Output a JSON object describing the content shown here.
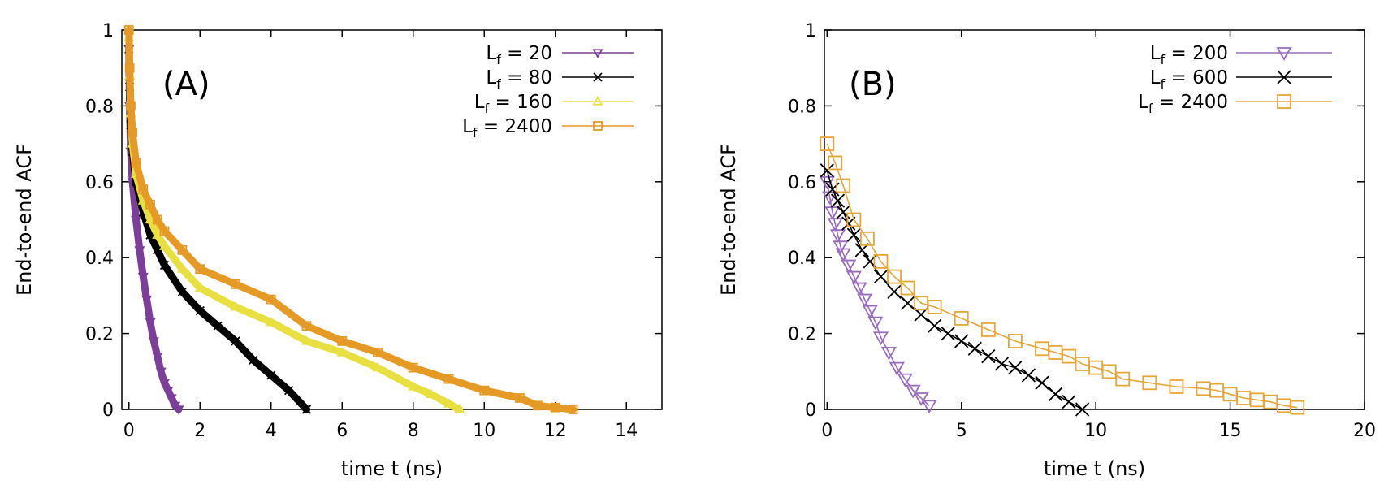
{
  "chart_data": [
    {
      "type": "line",
      "panel_label": "(A)",
      "xlabel": "time t (ns)",
      "ylabel": "End-to-end ACF",
      "xlim": [
        -0.2,
        15
      ],
      "ylim": [
        0,
        1
      ],
      "xticks": [
        0,
        2,
        4,
        6,
        8,
        10,
        12,
        14
      ],
      "yticks": [
        0,
        0.2,
        0.4,
        0.6,
        0.8,
        1
      ],
      "ytick_labels": [
        "0",
        "0.2",
        "0.4",
        "0.6",
        "0.8",
        "1"
      ],
      "legend_position": "top-right",
      "series": [
        {
          "name": "20",
          "legend_prefix": "L",
          "legend_sub": "f",
          "color": "#7b3f99",
          "marker": "triangle-down",
          "x": [
            0,
            0.02,
            0.05,
            0.1,
            0.2,
            0.3,
            0.4,
            0.5,
            0.6,
            0.7,
            0.8,
            0.9,
            1.0,
            1.1,
            1.2,
            1.3,
            1.4
          ],
          "y": [
            0.95,
            0.8,
            0.68,
            0.6,
            0.5,
            0.42,
            0.35,
            0.29,
            0.23,
            0.18,
            0.14,
            0.1,
            0.07,
            0.05,
            0.03,
            0.01,
            0.0
          ]
        },
        {
          "name": "80",
          "legend_prefix": "L",
          "legend_sub": "f",
          "color": "#000000",
          "marker": "cross",
          "x": [
            0,
            0.02,
            0.05,
            0.1,
            0.2,
            0.4,
            0.6,
            0.8,
            1.0,
            1.5,
            2.0,
            2.5,
            3.0,
            3.5,
            4.0,
            4.5,
            5.0
          ],
          "y": [
            0.95,
            0.85,
            0.75,
            0.68,
            0.6,
            0.52,
            0.46,
            0.42,
            0.38,
            0.31,
            0.26,
            0.22,
            0.18,
            0.13,
            0.09,
            0.05,
            0.0
          ]
        },
        {
          "name": "160",
          "legend_prefix": "L",
          "legend_sub": "f",
          "color": "#e8e040",
          "marker": "triangle-up",
          "x": [
            0,
            0.02,
            0.05,
            0.1,
            0.2,
            0.4,
            0.6,
            0.8,
            1.0,
            1.5,
            2.0,
            3.0,
            4.0,
            5.0,
            6.0,
            7.0,
            8.0,
            8.5,
            9.0,
            9.3
          ],
          "y": [
            0.98,
            0.88,
            0.78,
            0.7,
            0.62,
            0.55,
            0.5,
            0.46,
            0.43,
            0.37,
            0.32,
            0.27,
            0.23,
            0.18,
            0.15,
            0.11,
            0.06,
            0.04,
            0.015,
            0.0
          ]
        },
        {
          "name": "2400",
          "legend_prefix": "L",
          "legend_sub": "f",
          "color": "#e69a26",
          "marker": "square",
          "x": [
            0,
            0.02,
            0.05,
            0.1,
            0.2,
            0.4,
            0.6,
            0.8,
            1.0,
            1.5,
            2.0,
            3.0,
            4.0,
            5.0,
            6.0,
            7.0,
            8.0,
            9.0,
            10.0,
            11.0,
            11.5,
            12.0,
            12.5
          ],
          "y": [
            1.0,
            0.9,
            0.8,
            0.73,
            0.65,
            0.58,
            0.54,
            0.5,
            0.47,
            0.42,
            0.37,
            0.33,
            0.29,
            0.22,
            0.18,
            0.15,
            0.11,
            0.08,
            0.05,
            0.03,
            0.01,
            0.005,
            0.0
          ]
        }
      ]
    },
    {
      "type": "line",
      "panel_label": "(B)",
      "xlabel": "time t (ns)",
      "ylabel": "End-to-end ACF",
      "xlim": [
        -0.1,
        20
      ],
      "ylim": [
        0,
        1
      ],
      "xticks": [
        0,
        5,
        10,
        15,
        20
      ],
      "yticks": [
        0,
        0.2,
        0.4,
        0.6,
        0.8,
        1
      ],
      "ytick_labels": [
        "0",
        "0.2",
        "0.4",
        "0.6",
        "0.8",
        "1"
      ],
      "legend_position": "top-right",
      "series": [
        {
          "name": "200",
          "legend_prefix": "L",
          "legend_sub": "f",
          "color": "#9a6cc0",
          "marker": "triangle-down",
          "x": [
            0,
            0.1,
            0.2,
            0.3,
            0.4,
            0.5,
            0.6,
            0.8,
            1.0,
            1.2,
            1.4,
            1.6,
            1.8,
            2.0,
            2.3,
            2.6,
            2.9,
            3.2,
            3.5,
            3.8
          ],
          "y": [
            0.6,
            0.56,
            0.52,
            0.49,
            0.46,
            0.43,
            0.41,
            0.38,
            0.35,
            0.32,
            0.29,
            0.26,
            0.23,
            0.19,
            0.15,
            0.11,
            0.08,
            0.05,
            0.03,
            0.01
          ]
        },
        {
          "name": "600",
          "legend_prefix": "L",
          "legend_sub": "f",
          "color": "#000000",
          "marker": "cross",
          "x": [
            0,
            0.2,
            0.4,
            0.6,
            0.8,
            1.0,
            1.3,
            1.6,
            2.0,
            2.5,
            3.0,
            3.5,
            4.0,
            4.5,
            5.0,
            5.5,
            6.0,
            6.5,
            7.0,
            7.5,
            8.0,
            8.5,
            9.0,
            9.5
          ],
          "y": [
            0.63,
            0.58,
            0.55,
            0.52,
            0.49,
            0.46,
            0.42,
            0.39,
            0.35,
            0.31,
            0.28,
            0.25,
            0.22,
            0.2,
            0.18,
            0.16,
            0.14,
            0.12,
            0.11,
            0.09,
            0.07,
            0.04,
            0.02,
            0.0
          ]
        },
        {
          "name": "2400",
          "legend_prefix": "L",
          "legend_sub": "f",
          "color": "#e6a63a",
          "marker": "square",
          "x": [
            0,
            0.3,
            0.6,
            1.0,
            1.5,
            2.0,
            2.5,
            3.0,
            3.5,
            4.0,
            5.0,
            6.0,
            7.0,
            8.0,
            8.5,
            9.0,
            9.5,
            10.0,
            10.5,
            11.0,
            12.0,
            13.0,
            14.0,
            14.5,
            15.0,
            15.5,
            16.0,
            16.5,
            17.0,
            17.5
          ],
          "y": [
            0.7,
            0.65,
            0.59,
            0.5,
            0.45,
            0.39,
            0.35,
            0.32,
            0.28,
            0.27,
            0.24,
            0.21,
            0.18,
            0.16,
            0.15,
            0.14,
            0.12,
            0.11,
            0.1,
            0.08,
            0.07,
            0.06,
            0.055,
            0.05,
            0.04,
            0.03,
            0.025,
            0.02,
            0.01,
            0.005
          ]
        }
      ]
    }
  ]
}
